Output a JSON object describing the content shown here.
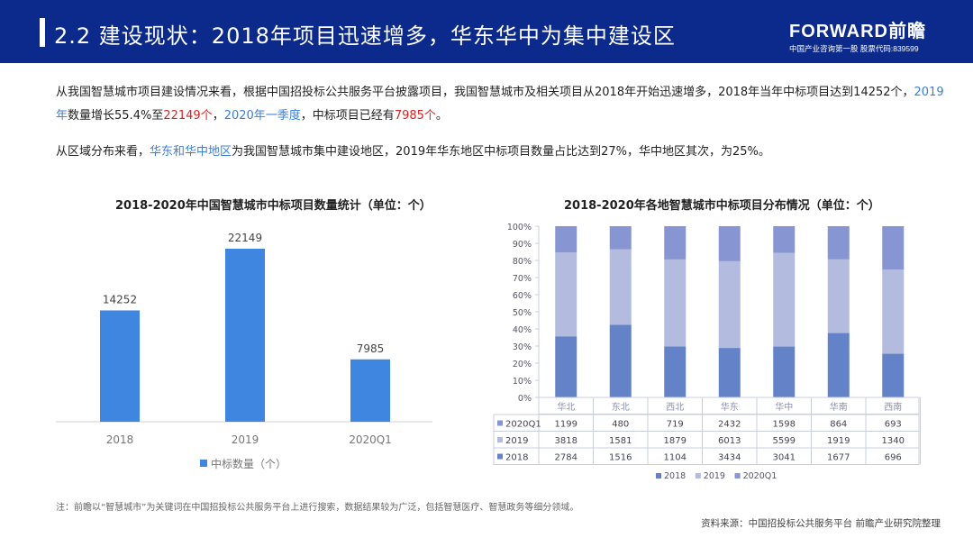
{
  "header": {
    "title": "2.2 建设现状：2018年项目迅速增多，华东华中为集中建设区",
    "logo_main": "FORWARD前瞻",
    "logo_sub": "中国产业咨询第一股  股票代码:839599"
  },
  "paragraph1": {
    "p1": "从我国智慧城市项目建设情况来看，根据中国招投标公共服务平台披露项目，我国智慧城市及相关项目从2018年开始迅速增多，2018年当年中标项目达到14252个，",
    "h1": "2019年",
    "p2": "数量增长55.4%至",
    "h2": "22149个",
    "p3": "，",
    "h3": "2020年一季度",
    "p4": "，中标项目已经有",
    "h4": "7985个",
    "p5": "。"
  },
  "paragraph2": {
    "p1": "从区域分布来看，",
    "h1": "华东和华中地区",
    "p2": "为我国智慧城市集中建设地区，2019年华东地区中标项目数量占比达到27%，华中地区其次，为25%。"
  },
  "chart_data": [
    {
      "type": "bar",
      "title": "2018-2020年中国智慧城市中标项目数量统计（单位：个）",
      "categories": [
        "2018",
        "2019",
        "2020Q1"
      ],
      "series": [
        {
          "name": "中标数量（个）",
          "values": [
            14252,
            22149,
            7985
          ]
        }
      ],
      "data_labels": true,
      "legend": "bottom",
      "color": "#3f86e0",
      "grid": false
    },
    {
      "type": "bar",
      "stacked": "percent",
      "title": "2018-2020年各地智慧城市中标项目分布情况（单位：个）",
      "categories": [
        "华北",
        "东北",
        "西北",
        "华东",
        "华中",
        "华南",
        "西南"
      ],
      "yticks": [
        "0%",
        "10%",
        "20%",
        "30%",
        "40%",
        "50%",
        "60%",
        "70%",
        "80%",
        "90%",
        "100%"
      ],
      "ylim": [
        0,
        100
      ],
      "series": [
        {
          "name": "2018",
          "values": [
            2784,
            1516,
            1104,
            3434,
            3041,
            1677,
            696
          ],
          "color": "#6382c8"
        },
        {
          "name": "2019",
          "values": [
            3818,
            1581,
            1879,
            6013,
            5599,
            1919,
            1340
          ],
          "color": "#b3bbde"
        },
        {
          "name": "2020Q1",
          "values": [
            1199,
            480,
            719,
            2432,
            1598,
            864,
            693
          ],
          "color": "#8795d2"
        }
      ],
      "table_order": [
        "2020Q1",
        "2019",
        "2018"
      ],
      "legend": "bottom",
      "grid": false
    }
  ],
  "footnote": "注：前瞻以“智慧城市”为关键词在中国招投标公共服务平台上进行搜索，数据结果较为广泛，包括智慧医疗、智慧政务等细分领域。",
  "source": "资料来源：中国招投标公共服务平台  前瞻产业研究院整理"
}
